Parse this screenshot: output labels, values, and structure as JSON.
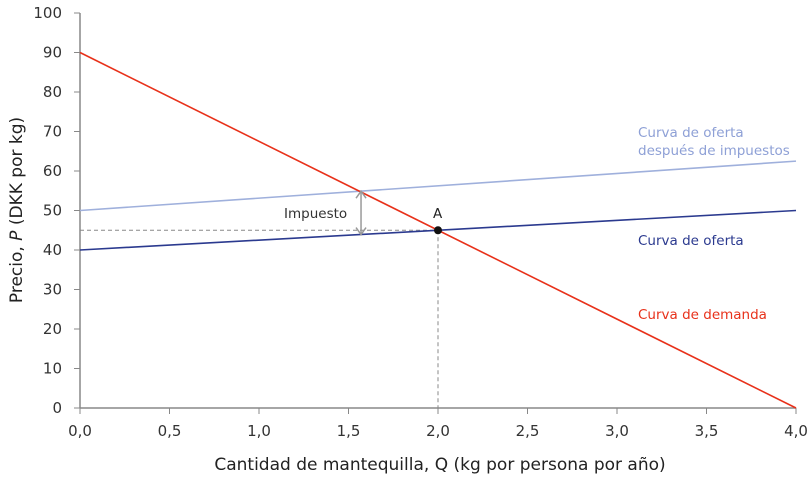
{
  "chart_data": {
    "type": "line",
    "xlabel": "Cantidad de mantequilla, Q (kg por persona por año)",
    "ylabel_prefix": "Precio, ",
    "ylabel_var": "P",
    "ylabel_suffix": " (DKK por kg)",
    "xlim": [
      0,
      4
    ],
    "ylim": [
      0,
      100
    ],
    "xticks": [
      "0,0",
      "0,5",
      "1,0",
      "1,5",
      "2,0",
      "2,5",
      "3,0",
      "3,5",
      "4,0"
    ],
    "xtick_values": [
      0,
      0.5,
      1,
      1.5,
      2,
      2.5,
      3,
      3.5,
      4
    ],
    "yticks": [
      "0",
      "10",
      "20",
      "30",
      "40",
      "50",
      "60",
      "70",
      "80",
      "90",
      "100"
    ],
    "ytick_values": [
      0,
      10,
      20,
      30,
      40,
      50,
      60,
      70,
      80,
      90,
      100
    ],
    "grid": false,
    "series": [
      {
        "name": "Curva de demanda",
        "color": "#e8311a",
        "x": [
          0,
          4
        ],
        "y": [
          90,
          0
        ]
      },
      {
        "name": "Curva de oferta",
        "color": "#2b3a8f",
        "x": [
          0,
          4
        ],
        "y": [
          40,
          50
        ]
      },
      {
        "name_line1": "Curva de oferta",
        "name_line2": "después de impuestos",
        "color": "#9fb0dc",
        "x": [
          0,
          4
        ],
        "y": [
          50,
          62.5
        ]
      }
    ],
    "point": {
      "label": "A",
      "x": 2,
      "y": 45
    },
    "tax_annotation": {
      "label": "Impuesto",
      "x": 1.57,
      "y_from": 43.9,
      "y_to": 54.9
    }
  }
}
